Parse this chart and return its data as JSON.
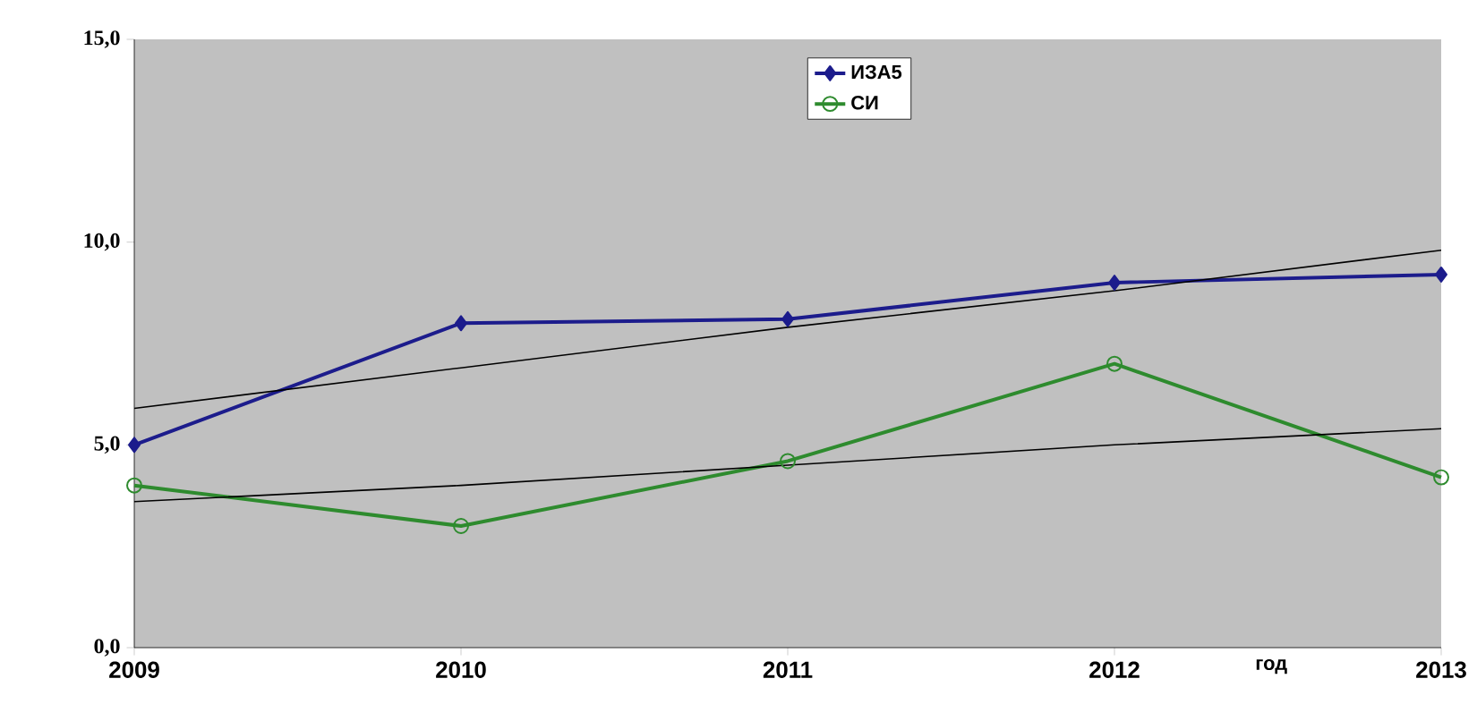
{
  "chart_data": {
    "type": "line",
    "xlabel": "год",
    "x": [
      2009,
      2010,
      2011,
      2012,
      2013
    ],
    "series": [
      {
        "name": "ИЗА5",
        "color": "#1c1c8c",
        "marker": "diamond",
        "values": [
          5.0,
          8.0,
          8.1,
          9.0,
          9.2
        ]
      },
      {
        "name": "СИ",
        "color": "#2e8b2e",
        "marker": "circle",
        "values": [
          4.0,
          3.0,
          4.6,
          7.0,
          4.2
        ]
      },
      {
        "color": "#000000",
        "marker": "none",
        "values": [
          5.9,
          6.9,
          7.9,
          8.8,
          9.8
        ]
      },
      {
        "color": "#000000",
        "marker": "none",
        "values": [
          3.6,
          4.0,
          4.5,
          5.0,
          5.4
        ]
      }
    ],
    "xlim": [
      2009,
      2013
    ],
    "xticks": [
      2009,
      2010,
      2011,
      2012,
      2013
    ],
    "ylim": [
      0,
      15
    ],
    "yticks": [
      {
        "value": 0,
        "label": "0,0"
      },
      {
        "value": 5,
        "label": "5,0"
      },
      {
        "value": 10,
        "label": "10,0"
      },
      {
        "value": 15,
        "label": "15,0"
      }
    ],
    "grid": false,
    "legend": "top"
  }
}
